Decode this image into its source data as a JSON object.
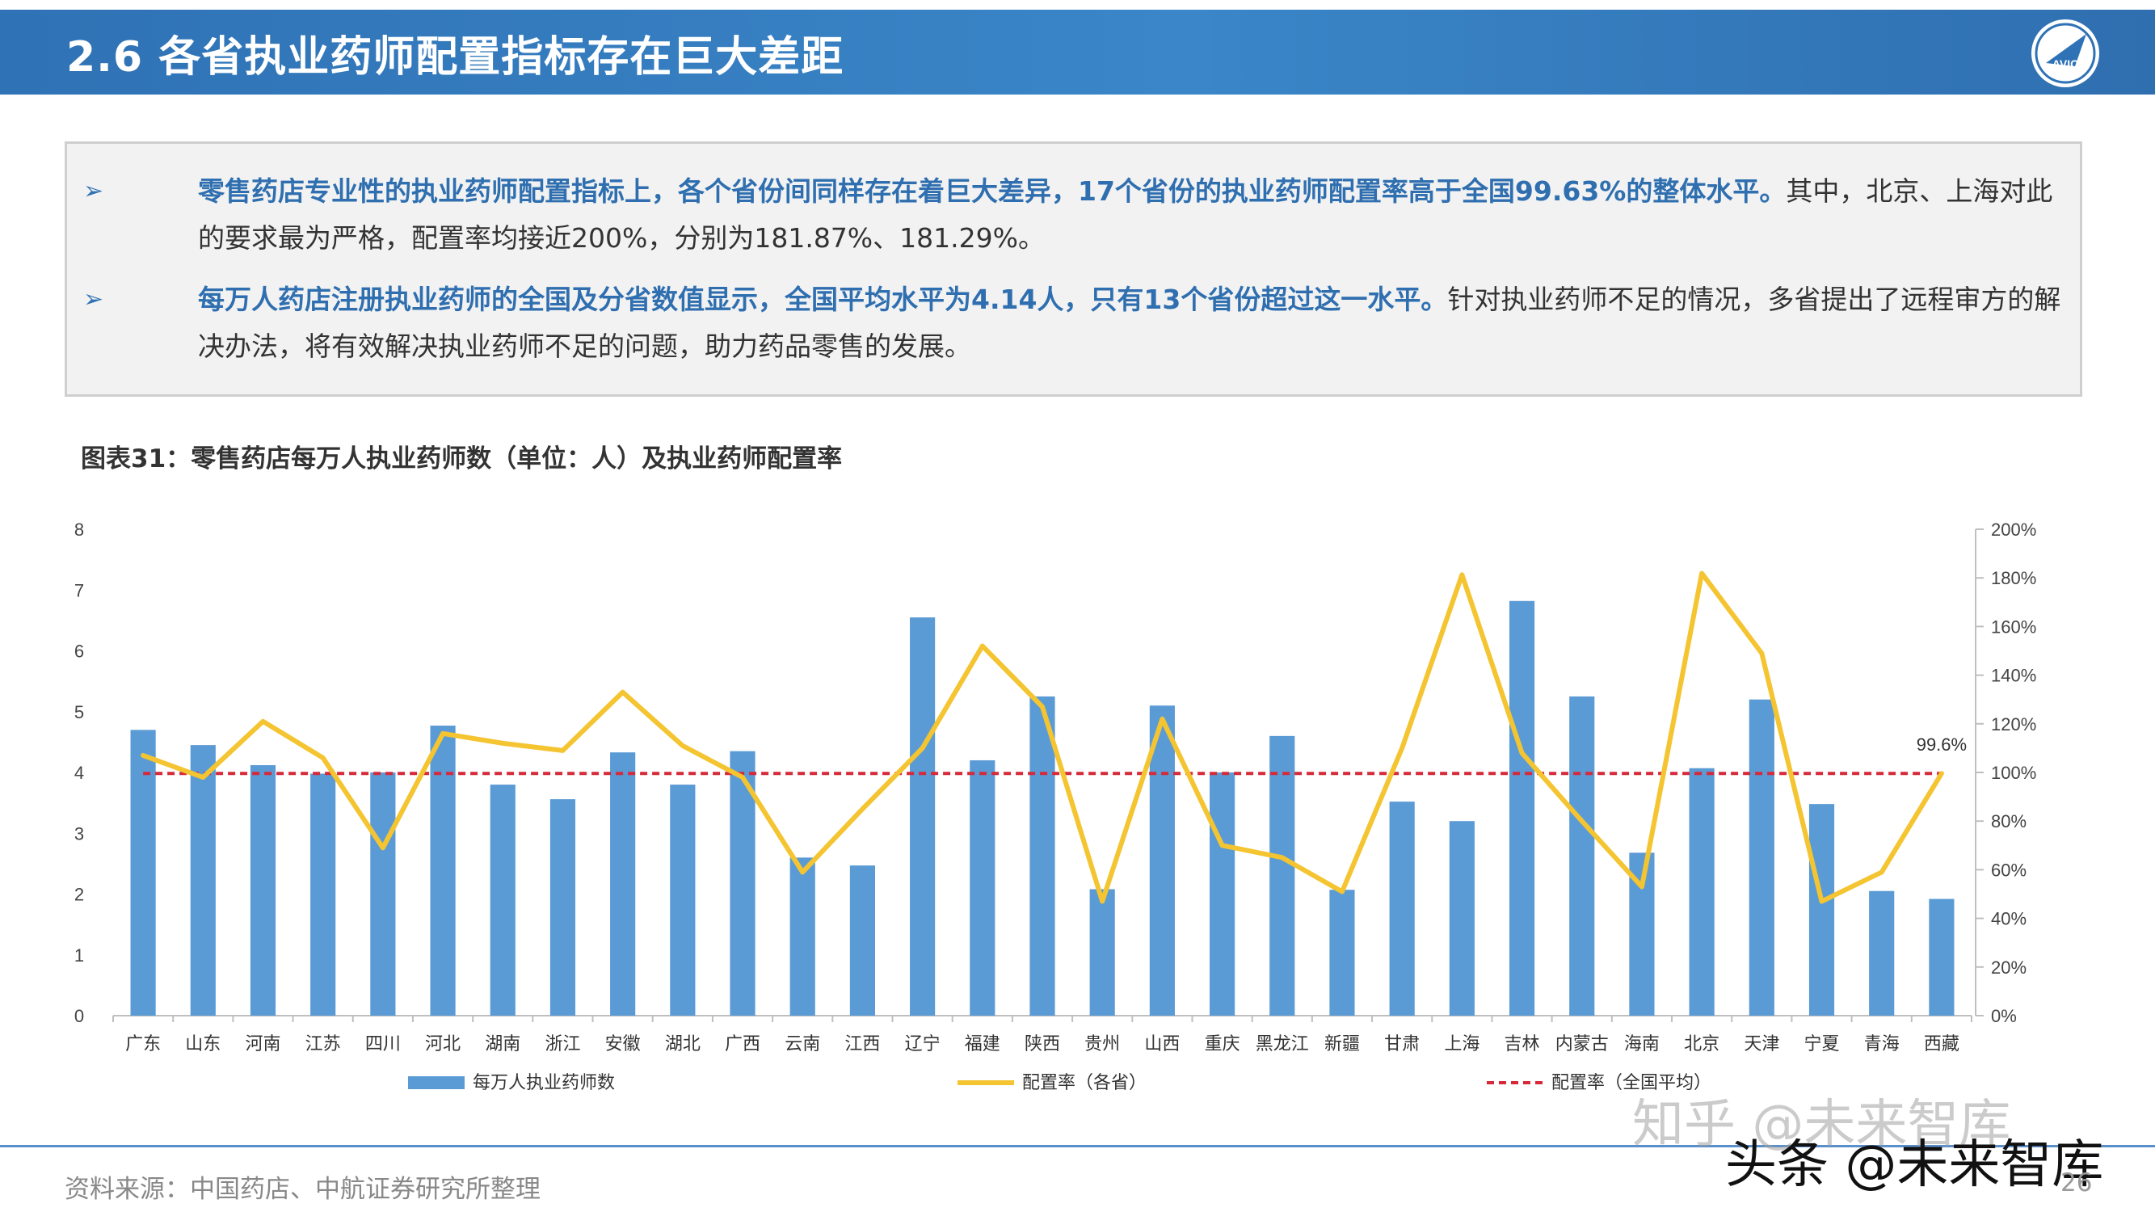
{
  "header": {
    "title": "2.6 各省执业药师配置指标存在巨大差距"
  },
  "summary": {
    "bullet1": {
      "highlight": "零售药店专业性的执业药师配置指标上，各个省份间同样存在着巨大差异，17个省份的执业药师配置率高于全国99.63%的整体水平。",
      "rest": "其中，北京、上海对此的要求最为严格，配置率均接近200%，分别为181.87%、181.29%。"
    },
    "bullet2": {
      "highlight": "每万人药店注册执业药师的全国及分省数值显示，全国平均水平为4.14人，只有13个省份超过这一水平。",
      "rest": "针对执业药师不足的情况，多省提出了远程审方的解决办法，将有效解决执业药师不足的问题，助力药品零售的发展。"
    }
  },
  "chart_title": "图表31：零售药店每万人执业药师数（单位：人）及执业药师配置率",
  "chart_data": {
    "type": "bar",
    "categories": [
      "广东",
      "山东",
      "河南",
      "江苏",
      "四川",
      "河北",
      "湖南",
      "浙江",
      "安徽",
      "湖北",
      "广西",
      "云南",
      "江西",
      "辽宁",
      "福建",
      "陕西",
      "贵州",
      "山西",
      "重庆",
      "黑龙江",
      "新疆",
      "甘肃",
      "上海",
      "吉林",
      "内蒙古",
      "海南",
      "北京",
      "天津",
      "宁夏",
      "青海",
      "西藏"
    ],
    "series": [
      {
        "name": "每万人执业药师数",
        "kind": "bar",
        "axis": "left",
        "color": "#5b9bd5",
        "values": [
          4.7,
          4.45,
          4.12,
          3.98,
          4.0,
          4.77,
          3.8,
          3.56,
          4.33,
          3.8,
          4.35,
          2.6,
          2.47,
          6.55,
          4.2,
          5.25,
          2.08,
          5.1,
          4.0,
          4.6,
          2.07,
          3.52,
          3.2,
          6.82,
          5.25,
          2.68,
          4.07,
          5.2,
          3.48,
          2.05,
          1.92
        ]
      },
      {
        "name": "配置率（各省）",
        "kind": "line",
        "axis": "right",
        "color": "#f4c431",
        "values": [
          107,
          98,
          121,
          106,
          69,
          116,
          112,
          109,
          133,
          111,
          98,
          59,
          85,
          110,
          152,
          127,
          47,
          122,
          70,
          65,
          51,
          110,
          181.29,
          108,
          80,
          53,
          181.87,
          149,
          47,
          59,
          99.6
        ]
      },
      {
        "name": "配置率（全国平均）",
        "kind": "dashed",
        "axis": "right",
        "color": "#d62a3a",
        "value": 99.6,
        "label": "99.6%"
      }
    ],
    "left_axis": {
      "ylim": [
        0,
        8
      ],
      "ticks": [
        "0",
        "1",
        "2",
        "3",
        "4",
        "5",
        "6",
        "7",
        "8"
      ]
    },
    "right_axis": {
      "ylim": [
        0,
        200
      ],
      "ticks": [
        "0%",
        "20%",
        "40%",
        "60%",
        "80%",
        "100%",
        "120%",
        "140%",
        "160%",
        "180%",
        "200%"
      ]
    },
    "grid": false,
    "legend_position": "bottom"
  },
  "footer": {
    "source": "资料来源：中国药店、中航证券研究所整理",
    "page": "26"
  },
  "watermarks": {
    "zhihu": "知乎 @未来智库",
    "toutiao": "头条 @未来智库"
  },
  "colors": {
    "header": "#2f72b5",
    "accent": "#2f6fb0"
  },
  "icons": {
    "logo": "avic-logo"
  }
}
